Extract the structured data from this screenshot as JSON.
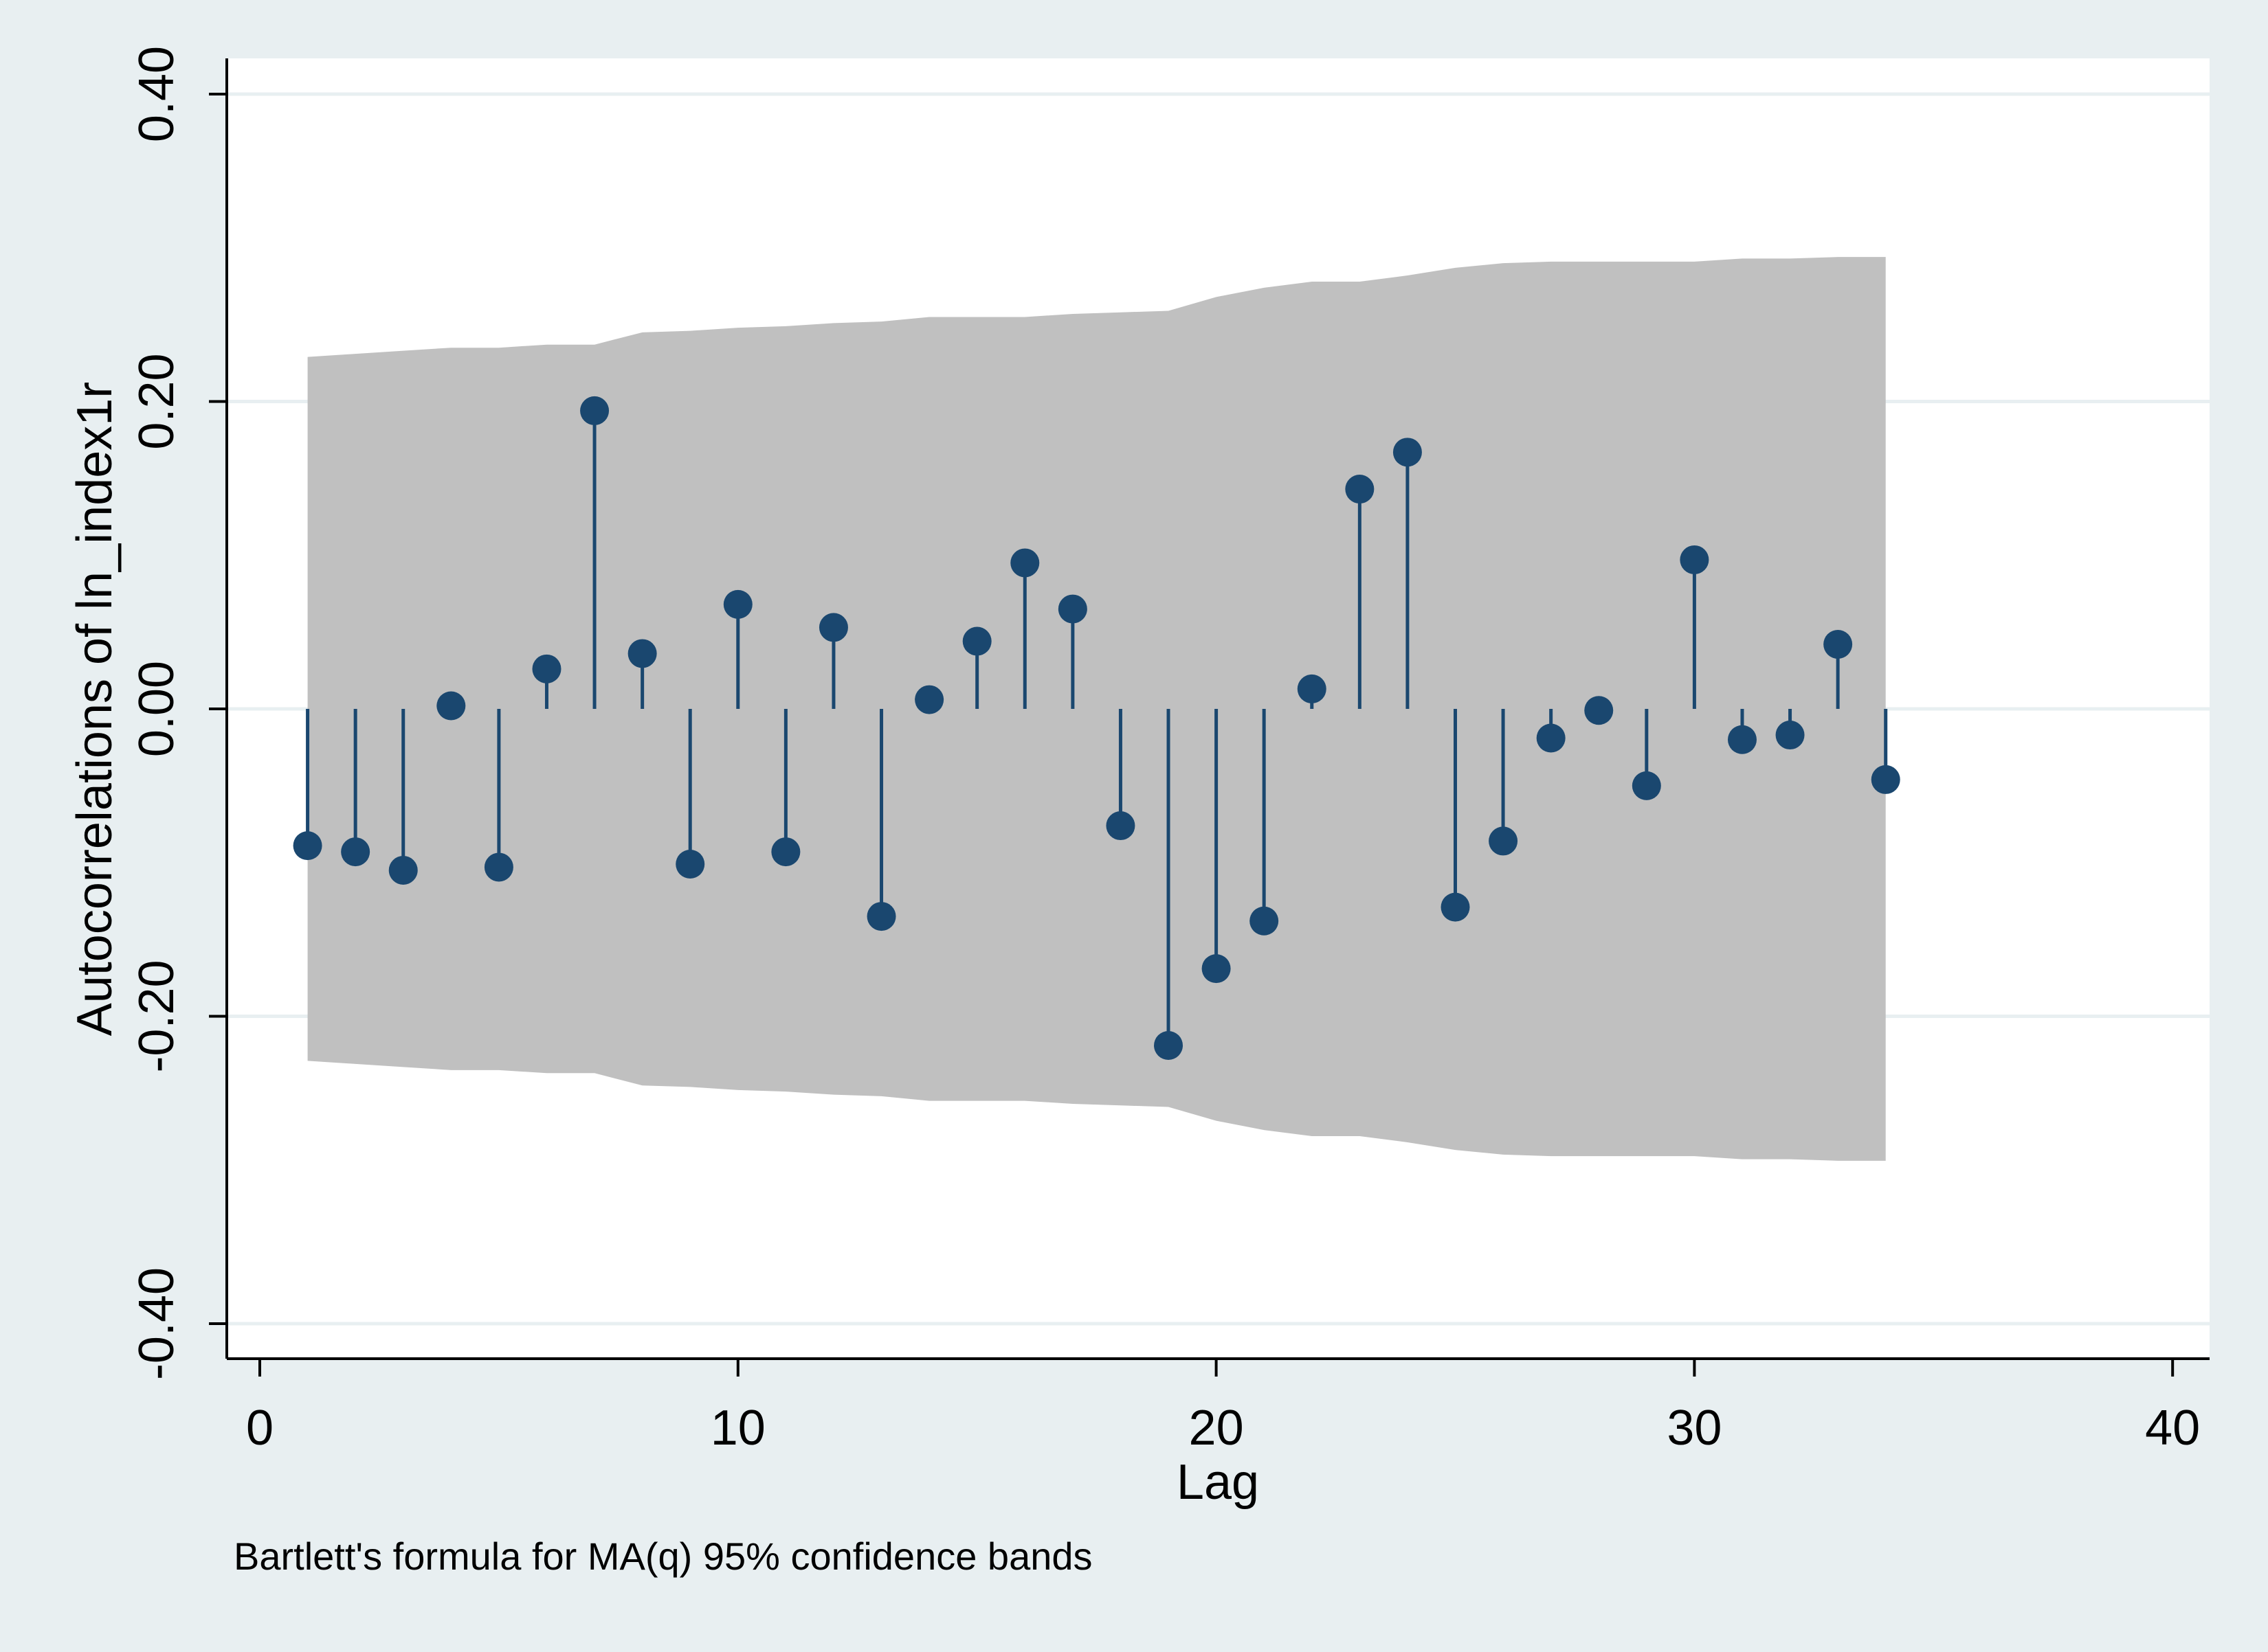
{
  "chart_data": {
    "type": "bar",
    "subtype": "stem (autocorrelogram with confidence band)",
    "ylabel": "Autocorrelations of ln_index1r",
    "xlabel": "Lag",
    "note": "Bartlett's formula for MA(q) 95% confidence bands",
    "xlim": [
      0,
      40
    ],
    "ylim": [
      -0.4,
      0.4
    ],
    "x_ticks": [
      "0",
      "10",
      "20",
      "30",
      "40"
    ],
    "y_ticks": [
      "-0.40",
      "-0.20",
      "0.00",
      "0.20",
      "0.40"
    ],
    "grid": true,
    "legend": "none",
    "series": [
      {
        "x": [
          1,
          2,
          3,
          4,
          5,
          6,
          7,
          8,
          9,
          10,
          11,
          12,
          13,
          14,
          15,
          16,
          17,
          18,
          19,
          20,
          21,
          22,
          23,
          24,
          25,
          26,
          27,
          28,
          29,
          30,
          31,
          32,
          33,
          34
        ],
        "values": [
          -0.089,
          -0.093,
          -0.105,
          0.002,
          -0.103,
          0.026,
          0.194,
          0.036,
          -0.101,
          0.068,
          -0.093,
          0.053,
          -0.135,
          0.006,
          0.044,
          0.095,
          0.065,
          -0.076,
          -0.219,
          -0.169,
          -0.138,
          0.013,
          0.143,
          0.167,
          -0.129,
          -0.086,
          -0.019,
          -0.001,
          -0.05,
          0.097,
          -0.02,
          -0.017,
          0.042,
          -0.046
        ]
      }
    ],
    "band": {
      "x": [
        1,
        2,
        3,
        4,
        5,
        6,
        7,
        8,
        9,
        10,
        11,
        12,
        13,
        14,
        15,
        16,
        17,
        18,
        19,
        20,
        21,
        22,
        23,
        24,
        25,
        26,
        27,
        28,
        29,
        30,
        31,
        32,
        33,
        34
      ],
      "upper": [
        0.229,
        0.231,
        0.233,
        0.235,
        0.235,
        0.237,
        0.237,
        0.245,
        0.246,
        0.248,
        0.249,
        0.251,
        0.252,
        0.255,
        0.255,
        0.255,
        0.257,
        0.258,
        0.259,
        0.268,
        0.274,
        0.278,
        0.278,
        0.282,
        0.287,
        0.29,
        0.291,
        0.291,
        0.291,
        0.291,
        0.293,
        0.293,
        0.294,
        0.294
      ]
    },
    "colors": {
      "page_bg": "#e8eff1",
      "plot_bg": "#ffffff",
      "grid": "#e8eff1",
      "band": "#c0c0c0",
      "marker": "#1a476f"
    }
  }
}
